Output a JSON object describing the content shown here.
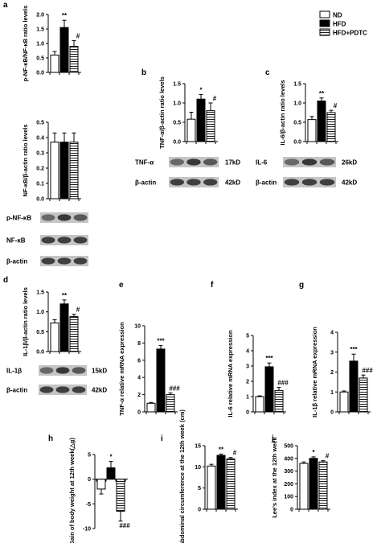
{
  "legend": [
    {
      "label": "ND",
      "fill": "white"
    },
    {
      "label": "HFD",
      "fill": "black"
    },
    {
      "label": "HFD+PDTC",
      "fill": "stripes"
    }
  ],
  "colors": {
    "bar_outline": "#000000",
    "hfd": "#000000",
    "nd": "#ffffff",
    "blot_band": "#3a3a3a",
    "blot_bg": "#bdbdbd"
  },
  "chart_data": [
    {
      "panel": "a",
      "type": "bar",
      "ylabel": "p-NF-κB/NF-κB ratio levels",
      "ylim": [
        0,
        2
      ],
      "yticks": [
        "0.0",
        "0.5",
        "1.0",
        "1.5",
        "2.0"
      ],
      "values": [
        0.6,
        1.55,
        0.9
      ],
      "errors": [
        0.12,
        0.25,
        0.2
      ],
      "sig": [
        "",
        "**",
        "#"
      ]
    },
    {
      "panel": "a2",
      "type": "bar",
      "ylabel": "NF-κB/β-actin ratio levels",
      "ylim": [
        0,
        0.5
      ],
      "yticks": [
        "0.0",
        "0.1",
        "0.2",
        "0.3",
        "0.4",
        "0.5"
      ],
      "values": [
        0.37,
        0.37,
        0.37
      ],
      "errors": [
        0.06,
        0.06,
        0.06
      ],
      "sig": [
        "",
        "",
        ""
      ]
    },
    {
      "panel": "b",
      "type": "bar",
      "ylabel": "TNF-α/β-actin ratio levels",
      "ylim": [
        0,
        1.5
      ],
      "yticks": [
        "0.0",
        "0.5",
        "1.0",
        "1.5"
      ],
      "values": [
        0.58,
        1.1,
        0.8
      ],
      "errors": [
        0.18,
        0.12,
        0.2
      ],
      "sig": [
        "",
        "*",
        "#"
      ]
    },
    {
      "panel": "c",
      "type": "bar",
      "ylabel": "IL-6/β-actin ratio levels",
      "ylim": [
        0,
        1.5
      ],
      "yticks": [
        "0.0",
        "0.5",
        "1.0",
        "1.5"
      ],
      "values": [
        0.57,
        1.05,
        0.75
      ],
      "errors": [
        0.08,
        0.08,
        0.06
      ],
      "sig": [
        "",
        "**",
        "#"
      ]
    },
    {
      "panel": "d",
      "type": "bar",
      "ylabel": "IL-1β/β-actin ratio levels",
      "ylim": [
        0,
        1.5
      ],
      "yticks": [
        "0.0",
        "0.5",
        "1.0",
        "1.5"
      ],
      "values": [
        0.72,
        1.2,
        0.88
      ],
      "errors": [
        0.08,
        0.1,
        0.06
      ],
      "sig": [
        "",
        "**",
        "#"
      ]
    },
    {
      "panel": "e",
      "type": "bar",
      "ylabel": "TNF-α relative mRNA expression",
      "ylim": [
        0,
        10
      ],
      "yticks": [
        "0",
        "2",
        "4",
        "6",
        "8",
        "10"
      ],
      "values": [
        1.0,
        7.3,
        2.0
      ],
      "errors": [
        0.1,
        0.4,
        0.2
      ],
      "sig": [
        "",
        "***",
        "###"
      ]
    },
    {
      "panel": "f",
      "type": "bar",
      "ylabel": "IL-6 relative mRNA expression",
      "ylim": [
        0,
        5
      ],
      "yticks": [
        "0",
        "1",
        "2",
        "3",
        "4",
        "5"
      ],
      "values": [
        1.0,
        2.95,
        1.4
      ],
      "errors": [
        0.05,
        0.25,
        0.2
      ],
      "sig": [
        "",
        "***",
        "###"
      ]
    },
    {
      "panel": "g",
      "type": "bar",
      "ylabel": "IL-1β relative mRNA expression",
      "ylim": [
        0,
        4
      ],
      "yticks": [
        "0",
        "1",
        "2",
        "3",
        "4"
      ],
      "values": [
        1.0,
        2.55,
        1.7
      ],
      "errors": [
        0.05,
        0.35,
        0.15
      ],
      "sig": [
        "",
        "***",
        "###"
      ]
    },
    {
      "panel": "h",
      "type": "bar",
      "ylabel": "Gain of body weight at 12th week(△g)",
      "ylim": [
        -10,
        5
      ],
      "yticks": [
        "-10",
        "-5",
        "0",
        "5"
      ],
      "values": [
        -2.0,
        2.3,
        -6.5
      ],
      "errors": [
        1.0,
        1.3,
        2.0
      ],
      "sig": [
        "",
        "*",
        "###"
      ]
    },
    {
      "panel": "i",
      "type": "bar",
      "ylabel": "abdominal circumference at the 12th week (cm)",
      "ylim": [
        0,
        15
      ],
      "yticks": [
        "0",
        "5",
        "10",
        "15"
      ],
      "values": [
        10.2,
        12.7,
        11.9
      ],
      "errors": [
        0.4,
        0.3,
        0.3
      ],
      "sig": [
        "",
        "**",
        "#"
      ]
    },
    {
      "panel": "j",
      "type": "bar",
      "ylabel": "Lee's index at the 12th week",
      "ylim": [
        0,
        500
      ],
      "yticks": [
        "0",
        "100",
        "200",
        "300",
        "400",
        "500"
      ],
      "values": [
        360,
        400,
        372
      ],
      "errors": [
        12,
        12,
        10
      ],
      "sig": [
        "",
        "*",
        "#"
      ]
    }
  ],
  "blots": [
    {
      "panel": "a",
      "rows": [
        {
          "label": "p-NF-κB",
          "kd": ""
        },
        {
          "label": "NF-κB",
          "kd": ""
        },
        {
          "label": "β-actin",
          "kd": ""
        }
      ]
    },
    {
      "panel": "b",
      "rows": [
        {
          "label": "TNF-α",
          "kd": "17kD"
        },
        {
          "label": "β-actin",
          "kd": "42kD"
        }
      ]
    },
    {
      "panel": "c",
      "rows": [
        {
          "label": "IL-6",
          "kd": "26kD"
        },
        {
          "label": "β-actin",
          "kd": "42kD"
        }
      ]
    },
    {
      "panel": "d",
      "rows": [
        {
          "label": "IL-1β",
          "kd": "15kD"
        },
        {
          "label": "β-actin",
          "kd": "42kD"
        }
      ]
    }
  ],
  "panel_letters": {
    "a": "a",
    "b": "b",
    "c": "c",
    "d": "d",
    "e": "e",
    "f": "f",
    "g": "g",
    "h": "h",
    "i": "i",
    "j": "j"
  }
}
